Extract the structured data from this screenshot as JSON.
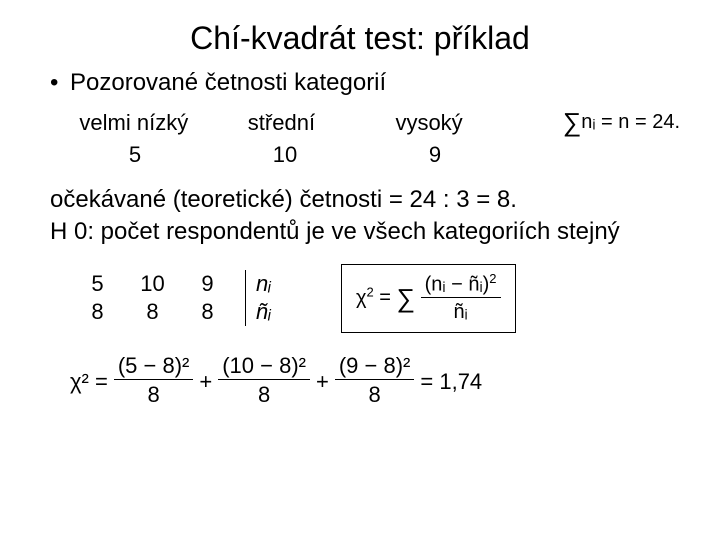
{
  "title": "Chí-kvadrát test: příklad",
  "bullet": "• ",
  "bullet_text": "Pozorované četnosti kategorií",
  "categories": {
    "c1": "velmi nízký",
    "c2": "střední",
    "c3": "vysoký"
  },
  "observed": {
    "v1": "5",
    "v2": "10",
    "v3": "9"
  },
  "sum_formula_sigma": "∑",
  "sum_formula_ni": "nᵢ = n = 24.",
  "expected_line": "očekávané (teoretické) četnosti = 24 : 3 = 8.",
  "h0_line": "H 0: počet respondentů je ve všech kategoriích stejný",
  "mini_table": {
    "r1c1": "5",
    "r1c2": "10",
    "r1c3": "9",
    "r2c1": "8",
    "r2c2": "8",
    "r2c3": "8"
  },
  "legend": {
    "l1": "nᵢ",
    "l2": "ñᵢ"
  },
  "formula_chi": "χ",
  "formula_eq": " = ",
  "formula_num_n": "(nᵢ − ñᵢ)",
  "formula_den": "ñᵢ",
  "calc": {
    "lhs": "χ² = ",
    "n1": "(5 − 8)²",
    "d1": "8",
    "plus": " + ",
    "n2": "(10 − 8)²",
    "d2": "8",
    "n3": "(9 − 8)²",
    "d3": "8",
    "result": " = 1,74"
  }
}
